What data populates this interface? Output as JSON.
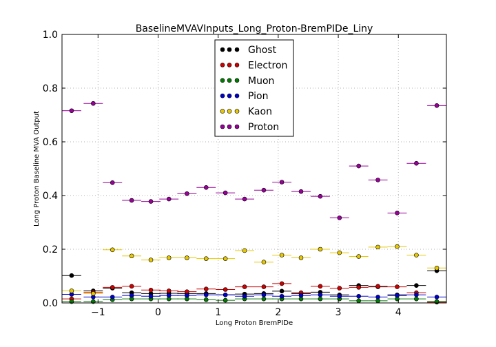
{
  "chart_data": {
    "type": "scatter",
    "title": "BaselineMVAVInputs_Long_Proton-BremPIDe_Liny",
    "xlabel": "Long Proton BremPIDe",
    "ylabel": "Long Proton Baseline MVA Output",
    "xlim": [
      -1.6,
      4.8
    ],
    "ylim": [
      0.0,
      1.0
    ],
    "xticks": [
      -1,
      0,
      1,
      2,
      3,
      4
    ],
    "yticks": [
      0.0,
      0.2,
      0.4,
      0.6,
      0.8,
      1.0
    ],
    "xtick_labels": [
      "−1",
      "0",
      "1",
      "2",
      "3",
      "4"
    ],
    "ytick_labels": [
      "0.0",
      "0.2",
      "0.4",
      "0.6",
      "0.8",
      "1.0"
    ],
    "grid": true,
    "legend_position": "top-center",
    "x": [
      -1.44,
      -1.08,
      -0.76,
      -0.44,
      -0.12,
      0.18,
      0.48,
      0.8,
      1.12,
      1.44,
      1.76,
      2.06,
      2.38,
      2.7,
      3.02,
      3.34,
      3.66,
      3.98,
      4.3,
      4.64
    ],
    "x_halfwidth": 0.16,
    "series": [
      {
        "name": "Ghost",
        "color": "#000000",
        "values": [
          0.102,
          0.045,
          0.055,
          0.038,
          0.035,
          0.036,
          0.035,
          0.035,
          0.03,
          0.033,
          0.035,
          0.044,
          0.035,
          0.04,
          0.03,
          0.065,
          0.06,
          0.03,
          0.065,
          0.12
        ]
      },
      {
        "name": "Electron",
        "color": "#cc0000",
        "values": [
          0.015,
          0.04,
          0.058,
          0.062,
          0.048,
          0.045,
          0.042,
          0.052,
          0.05,
          0.06,
          0.06,
          0.072,
          0.038,
          0.062,
          0.055,
          0.058,
          0.062,
          0.06,
          0.038,
          0.003
        ]
      },
      {
        "name": "Muon",
        "color": "#007a00",
        "values": [
          0.005,
          0.005,
          0.012,
          0.015,
          0.015,
          0.015,
          0.015,
          0.012,
          0.01,
          0.015,
          0.015,
          0.015,
          0.015,
          0.015,
          0.015,
          0.008,
          0.008,
          0.015,
          0.015,
          0.005
        ]
      },
      {
        "name": "Pion",
        "color": "#0000cc",
        "values": [
          0.032,
          0.022,
          0.022,
          0.028,
          0.025,
          0.028,
          0.028,
          0.03,
          0.03,
          0.025,
          0.03,
          0.025,
          0.028,
          0.03,
          0.025,
          0.025,
          0.022,
          0.028,
          0.03,
          0.022
        ]
      },
      {
        "name": "Kaon",
        "color": "#e6c800",
        "values": [
          0.045,
          0.035,
          0.198,
          0.175,
          0.16,
          0.168,
          0.168,
          0.165,
          0.165,
          0.195,
          0.152,
          0.178,
          0.168,
          0.2,
          0.187,
          0.173,
          0.208,
          0.21,
          0.178,
          0.13
        ]
      },
      {
        "name": "Proton",
        "color": "#990099",
        "values": [
          0.716,
          0.743,
          0.448,
          0.382,
          0.378,
          0.387,
          0.407,
          0.43,
          0.41,
          0.387,
          0.42,
          0.45,
          0.415,
          0.397,
          0.317,
          0.51,
          0.458,
          0.335,
          0.52,
          0.735
        ]
      }
    ]
  }
}
